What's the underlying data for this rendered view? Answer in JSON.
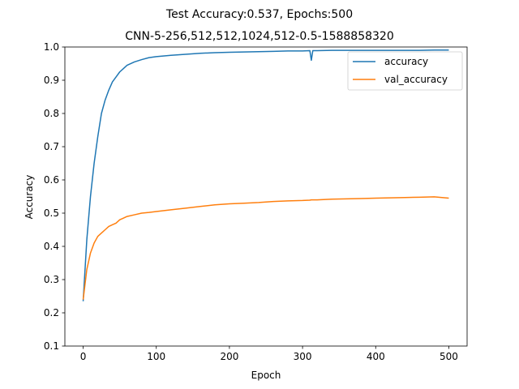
{
  "chart_data": {
    "type": "line",
    "title": "Test Accuracy:0.537, Epochs:500",
    "subtitle": "CNN-5-256,512,512,1024,512-0.5-1588858320",
    "xlabel": "Epoch",
    "ylabel": "Accuracy",
    "xlim": [
      -25,
      525
    ],
    "ylim": [
      0.1,
      1.0
    ],
    "x_ticks": [
      0,
      100,
      200,
      300,
      400,
      500
    ],
    "y_ticks": [
      0.1,
      0.2,
      0.3,
      0.4,
      0.5,
      0.6,
      0.7,
      0.8,
      0.9,
      1.0
    ],
    "grid": false,
    "legend": "top-right",
    "x": [
      0,
      5,
      10,
      15,
      20,
      25,
      30,
      35,
      40,
      45,
      50,
      55,
      60,
      70,
      80,
      90,
      100,
      120,
      140,
      160,
      180,
      200,
      220,
      240,
      260,
      280,
      300,
      310,
      312,
      314,
      320,
      340,
      360,
      380,
      400,
      420,
      440,
      460,
      480,
      500
    ],
    "series": [
      {
        "name": "accuracy",
        "color": "#1f77b4",
        "values": [
          0.235,
          0.42,
          0.55,
          0.65,
          0.73,
          0.8,
          0.84,
          0.87,
          0.895,
          0.91,
          0.925,
          0.935,
          0.945,
          0.955,
          0.962,
          0.968,
          0.971,
          0.975,
          0.978,
          0.981,
          0.983,
          0.984,
          0.985,
          0.986,
          0.987,
          0.988,
          0.988,
          0.989,
          0.96,
          0.989,
          0.989,
          0.99,
          0.99,
          0.99,
          0.99,
          0.99,
          0.99,
          0.99,
          0.991,
          0.991
        ]
      },
      {
        "name": "val_accuracy",
        "color": "#ff7f0e",
        "values": [
          0.24,
          0.33,
          0.38,
          0.41,
          0.43,
          0.44,
          0.45,
          0.46,
          0.465,
          0.47,
          0.48,
          0.485,
          0.49,
          0.495,
          0.5,
          0.502,
          0.505,
          0.51,
          0.515,
          0.52,
          0.525,
          0.528,
          0.53,
          0.532,
          0.535,
          0.537,
          0.538,
          0.539,
          0.54,
          0.54,
          0.54,
          0.542,
          0.543,
          0.544,
          0.545,
          0.546,
          0.547,
          0.548,
          0.549,
          0.545
        ]
      }
    ]
  }
}
